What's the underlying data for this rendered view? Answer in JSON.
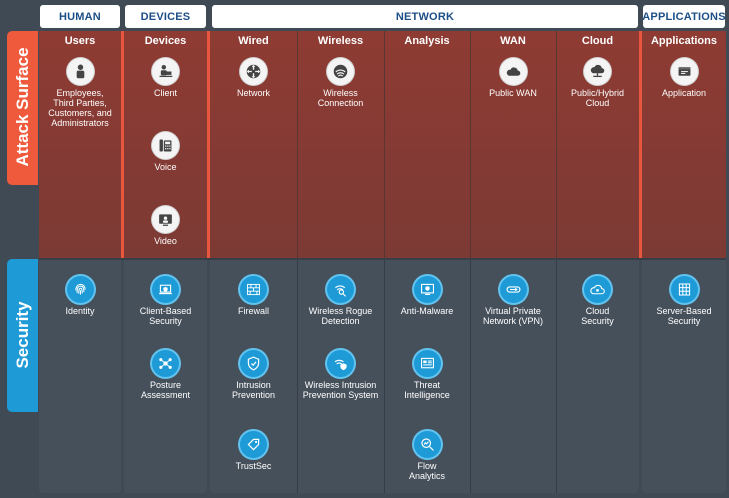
{
  "headers": {
    "human": "HUMAN",
    "devices": "DEVICES",
    "network": "NETWORK",
    "applications": "APPLICATIONS"
  },
  "side_labels": {
    "attack_surface": "Attack Surface",
    "security": "Security"
  },
  "columns": {
    "users": "Users",
    "devices": "Devices",
    "wired": "Wired",
    "wireless": "Wireless",
    "analysis": "Analysis",
    "wan": "WAN",
    "cloud": "Cloud",
    "applications": "Applications"
  },
  "attack_items": {
    "users": [
      "Employees,",
      "Third Parties,",
      "Customers, and",
      "Administrators"
    ],
    "client": "Client",
    "voice": "Voice",
    "video": "Video",
    "network": "Network",
    "wireless_connection": [
      "Wireless",
      "Connection"
    ],
    "public_wan": "Public WAN",
    "public_hybrid_cloud": [
      "Public/Hybrid",
      "Cloud"
    ],
    "application": "Application"
  },
  "security_items": {
    "identity": "Identity",
    "client_based_security": [
      "Client-Based",
      "Security"
    ],
    "posture_assessment": [
      "Posture",
      "Assessment"
    ],
    "firewall": "Firewall",
    "intrusion_prevention": [
      "Intrusion",
      "Prevention"
    ],
    "trustsec": "TrustSec",
    "wireless_rogue_detection": [
      "Wireless Rogue",
      "Detection"
    ],
    "wireless_ips": [
      "Wireless Intrusion",
      "Prevention System"
    ],
    "anti_malware": "Anti-Malware",
    "threat_intelligence": [
      "Threat",
      "Intelligence"
    ],
    "flow_analytics": [
      "Flow",
      "Analytics"
    ],
    "vpn": [
      "Virtual Private",
      "Network (VPN)"
    ],
    "cloud_security": [
      "Cloud",
      "Security"
    ],
    "server_based_security": [
      "Server-Based",
      "Security"
    ]
  },
  "colors": {
    "header_text": "#1d4f86",
    "attack_tab": "#ef5a3c",
    "security_tab": "#1e9ad6",
    "attack_band": "#8e3b33",
    "security_band": "#46505b",
    "icon_blue": "#1e9ad6"
  }
}
